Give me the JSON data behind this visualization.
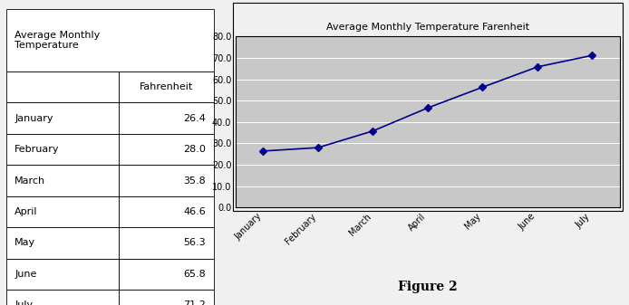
{
  "months": [
    "January",
    "February",
    "March",
    "April",
    "May",
    "June",
    "July"
  ],
  "fahrenheit": [
    26.4,
    28.0,
    35.8,
    46.6,
    56.3,
    65.8,
    71.2
  ],
  "table_title_line1": "Average Monthly",
  "table_title_line2": "Temperature",
  "table_col_header": "Fahrenheit",
  "chart_title": "Average Monthly Temperature Farenheit",
  "figure_label": "Figure 2",
  "ylim": [
    0,
    80
  ],
  "yticks": [
    0.0,
    10.0,
    20.0,
    30.0,
    40.0,
    50.0,
    60.0,
    70.0,
    80.0
  ],
  "line_color": "#00008B",
  "marker": "D",
  "marker_size": 4,
  "chart_bg_color": "#c8c8c8",
  "fig_bg_color": "#f0f0f0",
  "chart_border_color": "#888888",
  "table_border_color": "#888888"
}
